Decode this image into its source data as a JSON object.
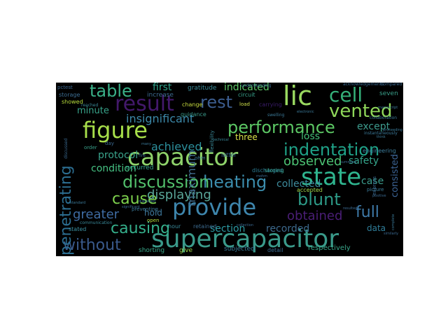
{
  "canvas": {
    "background": "#000000",
    "page_background": "#ffffff"
  },
  "words": [
    {
      "text": "supercapacitor",
      "color": "#3a9a8a"
    },
    {
      "text": "capacitor",
      "color": "#8ed26a"
    },
    {
      "text": "provide",
      "color": "#3e86ad"
    },
    {
      "text": "state",
      "color": "#2fb58f"
    },
    {
      "text": "figure",
      "color": "#a7de4a"
    },
    {
      "text": "result",
      "color": "#43196b"
    },
    {
      "text": "lic",
      "color": "#9ad960"
    },
    {
      "text": "rest",
      "color": "#3c5d8f"
    },
    {
      "text": "performance",
      "color": "#5cc764"
    },
    {
      "text": "heating",
      "color": "#3c8dad"
    },
    {
      "text": "discussion",
      "color": "#52c06c"
    },
    {
      "text": "cell",
      "color": "#35b079"
    },
    {
      "text": "vented",
      "color": "#8fd75a"
    },
    {
      "text": "indentation",
      "color": "#1fa187"
    },
    {
      "text": "table",
      "color": "#3ab088"
    },
    {
      "text": "without",
      "color": "#3a5a8c"
    },
    {
      "text": "causing",
      "color": "#35b08c"
    },
    {
      "text": "penetrating",
      "color": "#2c6e91"
    },
    {
      "text": "cause",
      "color": "#7fd34e"
    },
    {
      "text": "blunt",
      "color": "#2d9a87"
    },
    {
      "text": "full",
      "color": "#3e7aa8"
    },
    {
      "text": "displaying",
      "color": "#5aa79a"
    },
    {
      "text": "obtained",
      "color": "#4a1e76"
    },
    {
      "text": "greater",
      "color": "#3f6ca3"
    },
    {
      "text": "observed",
      "color": "#4cc374"
    },
    {
      "text": "maximum",
      "color": "#3f6a8a"
    },
    {
      "text": "insignificant",
      "color": "#3c88a8"
    },
    {
      "text": "achieved",
      "color": "#2c8f9c"
    },
    {
      "text": "indicated",
      "color": "#5ec869"
    },
    {
      "text": "condition",
      "color": "#46c283"
    },
    {
      "text": "protocol",
      "color": "#3aa48c"
    },
    {
      "text": "collected",
      "color": "#3e8c9e"
    },
    {
      "text": "recorded",
      "color": "#3d6a8e"
    },
    {
      "text": "section",
      "color": "#2c9aa3"
    },
    {
      "text": "loss",
      "color": "#44bf78"
    },
    {
      "text": "except",
      "color": "#3d9b8d"
    },
    {
      "text": "safety",
      "color": "#35a58b"
    },
    {
      "text": "case",
      "color": "#3c9c8d"
    },
    {
      "text": "consisted",
      "color": "#3c6496"
    },
    {
      "text": "data",
      "color": "#2f7e9a"
    },
    {
      "text": "first",
      "color": "#2fa38a"
    },
    {
      "text": "minute",
      "color": "#38a38a"
    },
    {
      "text": "three",
      "color": "#d9e24a"
    },
    {
      "text": "hold",
      "color": "#3f7ba0"
    },
    {
      "text": "respectively",
      "color": "#38a78a"
    },
    {
      "text": "shorting",
      "color": "#3aa88b"
    },
    {
      "text": "subjected",
      "color": "#3b7a97"
    },
    {
      "text": "discharged",
      "color": "#2c7d96"
    },
    {
      "text": "occurred",
      "color": "#37a48e"
    },
    {
      "text": "increase",
      "color": "#3c6a8f"
    },
    {
      "text": "gratitude",
      "color": "#3b8c9a"
    },
    {
      "text": "seven",
      "color": "#3aa08a"
    },
    {
      "text": "storage",
      "color": "#3c6e93"
    },
    {
      "text": "pctest",
      "color": "#3c6a93"
    },
    {
      "text": "showed",
      "color": "#b7dc3b"
    },
    {
      "text": "flexibility",
      "color": "#3a8796"
    },
    {
      "text": "circuit",
      "color": "#38a08a"
    },
    {
      "text": "engineering",
      "color": "#3c7d9c"
    },
    {
      "text": "accepted",
      "color": "#a2d84b"
    },
    {
      "text": "stated",
      "color": "#3c92a3"
    },
    {
      "text": "give",
      "color": "#a0d94a"
    },
    {
      "text": "storing",
      "color": "#38a08c"
    },
    {
      "text": "hour",
      "color": "#3a8a9a"
    },
    {
      "text": "open",
      "color": "#b6de3e"
    },
    {
      "text": "guidance",
      "color": "#3a9a8a"
    },
    {
      "text": "change",
      "color": "#c7db3e"
    },
    {
      "text": "retained",
      "color": "#3c6a8e"
    },
    {
      "text": "latter",
      "color": "#3b6a8d"
    },
    {
      "text": "ohm",
      "color": "#3c7e9a"
    },
    {
      "text": "picture",
      "color": "#3b7c99"
    },
    {
      "text": "express",
      "color": "#3a6a91"
    },
    {
      "text": "order",
      "color": "#3aa08a"
    },
    {
      "text": "detail",
      "color": "#3b6b90"
    },
    {
      "text": "communication",
      "color": "#3a8a9a"
    },
    {
      "text": "load",
      "color": "#cfe04a"
    },
    {
      "text": "reached",
      "color": "#3a8796"
    },
    {
      "text": "collaboration",
      "color": "#3b7a99"
    },
    {
      "text": "understanding",
      "color": "#3a6a91"
    },
    {
      "text": "compared",
      "color": "#3b6a92"
    },
    {
      "text": "instantaneously",
      "color": "#3c7a9a"
    },
    {
      "text": "carrying",
      "color": "#3b1c6b"
    },
    {
      "text": "acknowledgements",
      "color": "#3a6a91"
    },
    {
      "text": "electronic",
      "color": "#3b7a99"
    },
    {
      "text": "manuscript",
      "color": "#3c7a9a"
    },
    {
      "text": "think",
      "color": "#3c7a99"
    },
    {
      "text": "swelling",
      "color": "#3c7a99"
    },
    {
      "text": "resulted",
      "color": "#3b6a91"
    },
    {
      "text": "technical",
      "color": "#3a8a9a"
    },
    {
      "text": "summary",
      "color": "#3b6a91"
    },
    {
      "text": "collection",
      "color": "#3b6a91"
    },
    {
      "text": "preventing",
      "color": "#3b7a99"
    },
    {
      "text": "mohm",
      "color": "#3b6a91"
    },
    {
      "text": "displayed",
      "color": "#3b7a99"
    },
    {
      "text": "significant",
      "color": "#3b6a91"
    },
    {
      "text": "standard",
      "color": "#3b7a99"
    },
    {
      "text": "discussed",
      "color": "#3b6a91"
    },
    {
      "text": "positive",
      "color": "#3b6a91"
    },
    {
      "text": "complete",
      "color": "#3b7a99"
    },
    {
      "text": "similarly",
      "color": "#3b6a91"
    },
    {
      "text": "proceeding",
      "color": "#3b7a99"
    },
    {
      "text": "fire",
      "color": "#3b6a91"
    },
    {
      "text": "day",
      "color": "#3b6a91"
    },
    {
      "text": "many",
      "color": "#3b7a99"
    }
  ]
}
